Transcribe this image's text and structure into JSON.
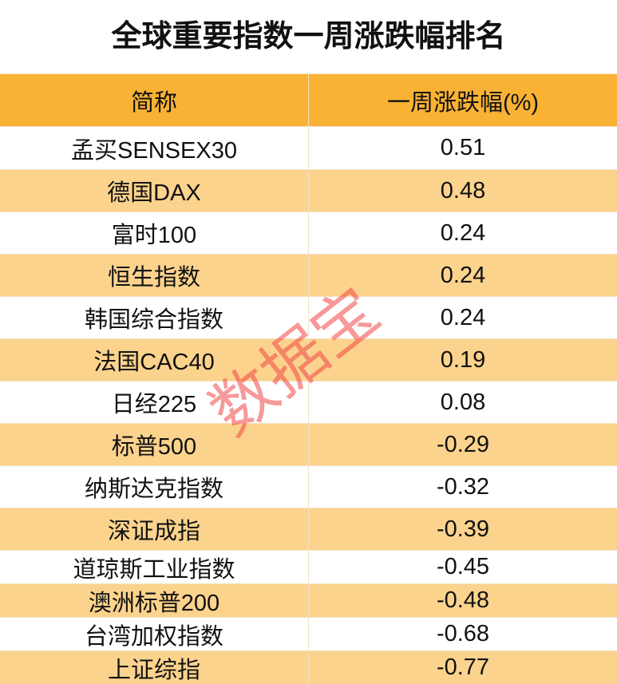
{
  "header": {
    "title": "全球重要指数一周涨跌幅排名"
  },
  "table": {
    "columns": [
      "简称",
      "一周涨跌幅(%)"
    ],
    "rows": [
      [
        "孟买SENSEX30",
        "0.51"
      ],
      [
        "德国DAX",
        "0.48"
      ],
      [
        "富时100",
        "0.24"
      ],
      [
        "恒生指数",
        "0.24"
      ],
      [
        "韩国综合指数",
        "0.24"
      ],
      [
        "法国CAC40",
        "0.19"
      ],
      [
        "日经225",
        "0.08"
      ],
      [
        "标普500",
        "-0.29"
      ],
      [
        "纳斯达克指数",
        "-0.32"
      ],
      [
        "深证成指",
        "-0.39"
      ],
      [
        "道琼斯工业指数",
        "-0.45"
      ],
      [
        "澳洲标普200",
        "-0.48"
      ],
      [
        "台湾加权指数",
        "-0.68"
      ],
      [
        "上证综指",
        "-0.77"
      ]
    ]
  },
  "watermark": "数据宝"
}
